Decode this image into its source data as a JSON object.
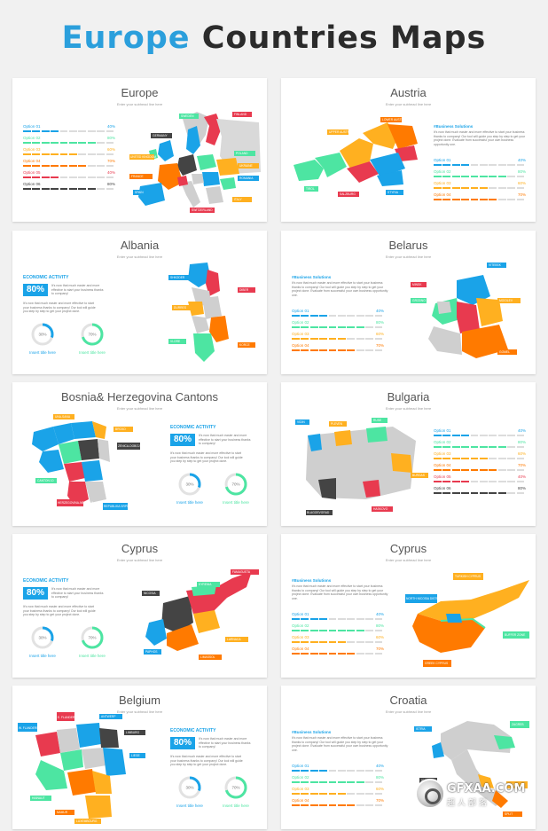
{
  "header": {
    "title_part1": "Europe",
    "title_part2": "Countries Maps"
  },
  "subtitle_text": "Enter your subhead line here",
  "slides": [
    {
      "title": "Europe",
      "options": [
        {
          "label": "Option 01",
          "pct": "40%",
          "color": "#1aa3e8",
          "level": 0.4
        },
        {
          "label": "Option 02",
          "pct": "80%",
          "color": "#4de5a2",
          "level": 0.8
        },
        {
          "label": "Option 03",
          "pct": "60%",
          "color": "#ffb020",
          "level": 0.6
        },
        {
          "label": "Option 04",
          "pct": "70%",
          "color": "#ff7a00",
          "level": 0.7
        },
        {
          "label": "Option 05",
          "pct": "40%",
          "color": "#e83a4f",
          "level": 0.4
        },
        {
          "label": "Option 06",
          "pct": "80%",
          "color": "#444444",
          "level": 0.8
        }
      ],
      "tags": [
        "FINLAND",
        "SWEDEN",
        "GERMANY",
        "UNITED KINGDOM",
        "POLAND",
        "UKRAINE",
        "ROMANIA",
        "FRANCE",
        "SPAIN",
        "ITALY",
        "SWITZERLAND"
      ]
    },
    {
      "title": "Austria",
      "biz_heading": "#Business Solutions",
      "biz_text": "It's now that much easier and more effective to start your business thanks to company! Our tool will guide you step by step to get your project done. Evaluate from successful your own business opportunity one.",
      "options": [
        {
          "label": "Option 01",
          "pct": "40%",
          "color": "#1aa3e8",
          "level": 0.4
        },
        {
          "label": "Option 02",
          "pct": "80%",
          "color": "#4de5a2",
          "level": 0.8
        },
        {
          "label": "Option 03",
          "pct": "60%",
          "color": "#ffb020",
          "level": 0.6
        },
        {
          "label": "Option 04",
          "pct": "70%",
          "color": "#ff7a00",
          "level": 0.7
        }
      ],
      "tags": [
        "UPPER AUSTRIA",
        "LOWER AUSTRIA",
        "TIROL",
        "SALZBURG",
        "STYRIA"
      ]
    },
    {
      "title": "Albania",
      "econ": {
        "heading": "ECONOMIC ACTIVITY",
        "big": "80%",
        "text1": "It's now that much easier and more effective to start your business thanks to company!",
        "text2": "It's now that much easier and more effective to start your business thanks to company! Our tool will guide you step by step to get your project done."
      },
      "rings": [
        {
          "pct": "30%",
          "caption": "Insert title here",
          "color": "#1aa3e8",
          "level": 0.3
        },
        {
          "pct": "70%",
          "caption": "Insert title here",
          "color": "#4de5a2",
          "level": 0.7
        }
      ],
      "tags": [
        "SHKODER",
        "DIBER",
        "DURRES",
        "VLORE",
        "KORCE"
      ]
    },
    {
      "title": "Belarus",
      "biz_heading": "#Business Solutions",
      "biz_text": "It's now that much easier and more effective to start your business thanks to company! Our tool will guide you step by step to get your project done. Evaluate from successful your own business opportunity one.",
      "options": [
        {
          "label": "Option 01",
          "pct": "40%",
          "color": "#1aa3e8",
          "level": 0.4
        },
        {
          "label": "Option 02",
          "pct": "80%",
          "color": "#4de5a2",
          "level": 0.8
        },
        {
          "label": "Option 03",
          "pct": "60%",
          "color": "#ffb020",
          "level": 0.6
        },
        {
          "label": "Option 04",
          "pct": "70%",
          "color": "#ff7a00",
          "level": 0.7
        }
      ],
      "tags": [
        "VITEBSK",
        "MINSK",
        "MOGILEV",
        "GRODNO",
        "GOMEL"
      ]
    },
    {
      "title": "Bosnia& Herzegovina Cantons",
      "econ": {
        "heading": "ECONOMIC ACTIVITY",
        "big": "80%",
        "text1": "It's now that much easier and more effective to start your business thanks to company!",
        "text2": "It's now that much easier and more effective to start your business thanks to company! Our tool will guide you step by step to get your project done."
      },
      "rings": [
        {
          "pct": "30%",
          "caption": "Insert title here",
          "color": "#1aa3e8",
          "level": 0.3
        },
        {
          "pct": "70%",
          "caption": "Insert title here",
          "color": "#4de5a2",
          "level": 0.7
        }
      ],
      "tags": [
        "UNA-SANA",
        "BRCKO",
        "ZENICA-DOBOJ",
        "CANTON 10",
        "HERZEGOVINA-NERETVA",
        "REPUBLIKA SRPSKA"
      ]
    },
    {
      "title": "Bulgaria",
      "options": [
        {
          "label": "Option 01",
          "pct": "40%",
          "color": "#1aa3e8",
          "level": 0.4
        },
        {
          "label": "Option 02",
          "pct": "80%",
          "color": "#4de5a2",
          "level": 0.8
        },
        {
          "label": "Option 03",
          "pct": "60%",
          "color": "#ffb020",
          "level": 0.6
        },
        {
          "label": "Option 04",
          "pct": "70%",
          "color": "#ff7a00",
          "level": 0.7
        },
        {
          "label": "Option 05",
          "pct": "40%",
          "color": "#e83a4f",
          "level": 0.4
        },
        {
          "label": "Option 06",
          "pct": "80%",
          "color": "#444444",
          "level": 0.8
        }
      ],
      "tags": [
        "VIDIN",
        "PLEVEN",
        "RUSE",
        "BURGAS",
        "HASKOVO",
        "BLAGOEVGRAD"
      ]
    },
    {
      "title": "Cyprus",
      "econ": {
        "heading": "ECONOMIC ACTIVITY",
        "big": "80%",
        "text1": "It's now that much easier and more effective to start your business thanks to company!",
        "text2": "It's now that much easier and more effective to start your business thanks to company! Our tool will guide you step by step to get your project done."
      },
      "rings": [
        {
          "pct": "30%",
          "caption": "Insert title here",
          "color": "#1aa3e8",
          "level": 0.3
        },
        {
          "pct": "70%",
          "caption": "Insert title here",
          "color": "#4de5a2",
          "level": 0.7
        }
      ],
      "tags": [
        "FAMAGUSTA",
        "NICOSIA",
        "KYRENIA",
        "PAPHOS",
        "LIMASSOL",
        "LARNACA"
      ]
    },
    {
      "title": "Cyprus",
      "biz_heading": "#Business Solutions",
      "biz_text": "It's now that much easier and more effective to start your business thanks to company! Our tool will guide you step by step to get your project done. Evaluate from successful your own business opportunity one.",
      "options": [
        {
          "label": "Option 01",
          "pct": "40%",
          "color": "#1aa3e8",
          "level": 0.4
        },
        {
          "label": "Option 02",
          "pct": "80%",
          "color": "#4de5a2",
          "level": 0.8
        },
        {
          "label": "Option 03",
          "pct": "60%",
          "color": "#ffb020",
          "level": 0.6
        },
        {
          "label": "Option 04",
          "pct": "70%",
          "color": "#ff7a00",
          "level": 0.7
        }
      ],
      "tags": [
        "TURKISH CYPRUS",
        "NORTH NICOSIA DISTRICT",
        "BUFFER ZONE",
        "GREEK CYPRUS"
      ]
    },
    {
      "title": "Belgium",
      "econ": {
        "heading": "ECONOMIC ACTIVITY",
        "big": "80%",
        "text1": "It's now that much easier and more effective to start your business thanks to company!",
        "text2": "It's now that much easier and more effective to start your business thanks to company! Our tool will guide you step by step to get your project done."
      },
      "rings": [
        {
          "pct": "30%",
          "caption": "Insert title here",
          "color": "#1aa3e8",
          "level": 0.3
        },
        {
          "pct": "70%",
          "caption": "Insert title here",
          "color": "#4de5a2",
          "level": 0.7
        }
      ],
      "tags": [
        "W. FLANDERS",
        "E. FLANDERS",
        "ANTWERP",
        "LIMBURG",
        "LIEGE",
        "HAINAUT",
        "NAMUR",
        "LUXEMBOURG"
      ]
    },
    {
      "title": "Croatia",
      "biz_heading": "#Business Solutions",
      "biz_text": "It's now that much easier and more effective to start your business thanks to company! Our tool will guide you step by step to get your project done. Evaluate from successful your own business opportunity one.",
      "options": [
        {
          "label": "Option 01",
          "pct": "40%",
          "color": "#1aa3e8",
          "level": 0.4
        },
        {
          "label": "Option 02",
          "pct": "80%",
          "color": "#4de5a2",
          "level": 0.8
        },
        {
          "label": "Option 03",
          "pct": "60%",
          "color": "#ffb020",
          "level": 0.6
        },
        {
          "label": "Option 04",
          "pct": "70%",
          "color": "#ff7a00",
          "level": 0.7
        }
      ],
      "tags": [
        "ISTRIA",
        "ZAGREB",
        "VUKOVAR",
        "ZADAR",
        "SPLIT"
      ]
    }
  ],
  "watermark": {
    "text": "GFXAA.COM",
    "sub": "超人部落"
  }
}
